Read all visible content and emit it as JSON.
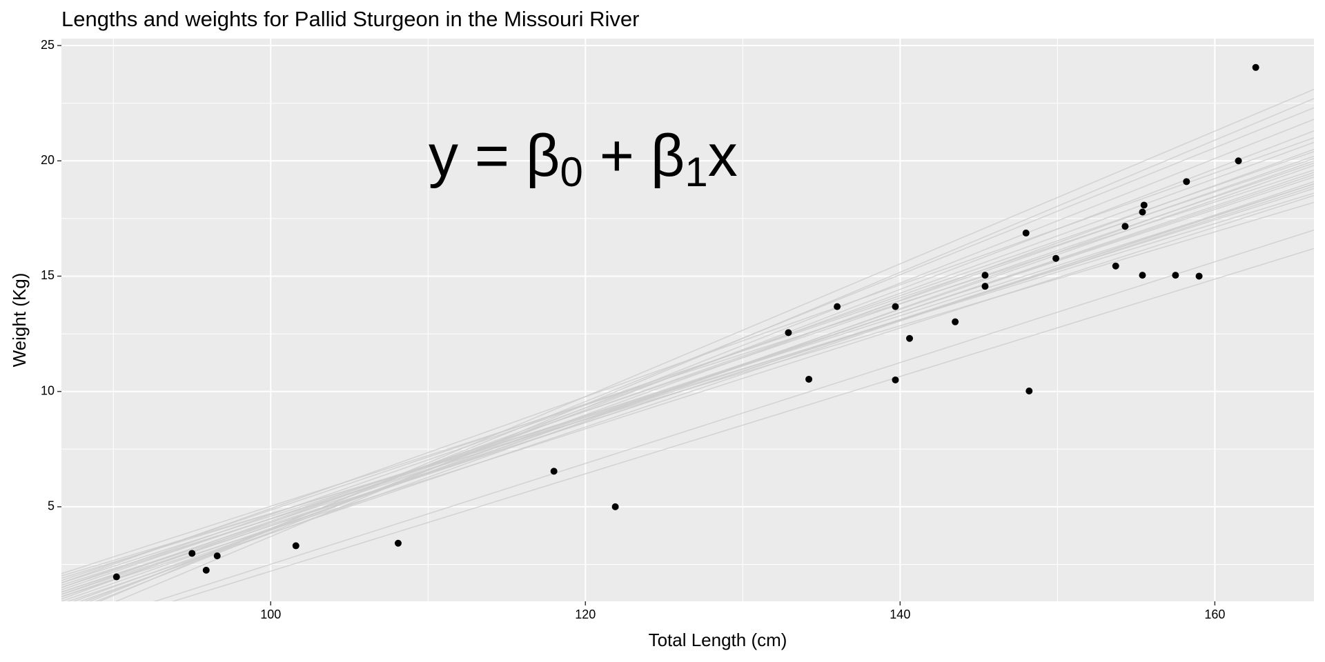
{
  "chart_data": {
    "type": "scatter",
    "title": "Lengths and weights for Pallid Sturgeon in the Missouri River",
    "xlabel": "Total Length (cm)",
    "ylabel": "Weight (Kg)",
    "annotation": [
      "y",
      " = β",
      "0",
      " + β",
      "1",
      "x"
    ],
    "xlim": [
      86.7,
      166.3
    ],
    "ylim": [
      0.9,
      25.3
    ],
    "xticks": [
      100,
      120,
      140,
      160
    ],
    "yticks": [
      5,
      10,
      15,
      20,
      25
    ],
    "x_minor_ticks": [
      90,
      110,
      130,
      150
    ],
    "y_minor_ticks": [
      2.5,
      7.5,
      12.5,
      17.5,
      22.5
    ],
    "grid": true,
    "color": "#000000",
    "line_color": "#cccccc",
    "x": [
      90.2,
      95.0,
      95.9,
      96.6,
      101.6,
      108.1,
      118.0,
      121.9,
      132.9,
      134.2,
      136.0,
      139.7,
      139.7,
      140.6,
      143.5,
      145.4,
      145.4,
      148.0,
      148.2,
      149.9,
      153.7,
      154.3,
      155.4,
      155.4,
      155.5,
      157.5,
      158.2,
      159.0,
      161.5,
      162.6
    ],
    "values": [
      1.96,
      2.98,
      2.25,
      2.87,
      3.31,
      3.42,
      6.54,
      5.0,
      12.55,
      10.53,
      13.68,
      13.68,
      10.5,
      12.3,
      13.02,
      15.04,
      14.56,
      16.87,
      10.02,
      15.77,
      15.44,
      17.16,
      15.04,
      17.78,
      18.08,
      15.04,
      19.1,
      15.0,
      20.0,
      24.05
    ],
    "fit_lines": {
      "x": [
        86.7,
        166.3
      ],
      "y": [
        [
          1.1,
          19.5
        ],
        [
          1.3,
          19.4
        ],
        [
          1.5,
          19.3
        ],
        [
          0.9,
          19.8
        ],
        [
          1.7,
          19.0
        ],
        [
          1.2,
          20.2
        ],
        [
          0.7,
          20.5
        ],
        [
          1.9,
          18.6
        ],
        [
          1.4,
          19.9
        ],
        [
          1.0,
          20.8
        ],
        [
          1.6,
          18.8
        ],
        [
          0.5,
          21.3
        ],
        [
          1.8,
          20.1
        ],
        [
          1.3,
          18.9
        ],
        [
          0.3,
          21.8
        ],
        [
          2.0,
          18.2
        ],
        [
          0.8,
          19.1
        ],
        [
          1.5,
          20.4
        ],
        [
          0.4,
          22.3
        ],
        [
          1.1,
          18.5
        ],
        [
          0.2,
          23.1
        ],
        [
          1.7,
          21.0
        ],
        [
          -0.6,
          16.2
        ],
        [
          -0.4,
          17.0
        ],
        [
          2.1,
          19.6
        ],
        [
          0.6,
          20.0
        ],
        [
          1.2,
          19.0
        ],
        [
          -0.1,
          22.7
        ]
      ]
    }
  }
}
